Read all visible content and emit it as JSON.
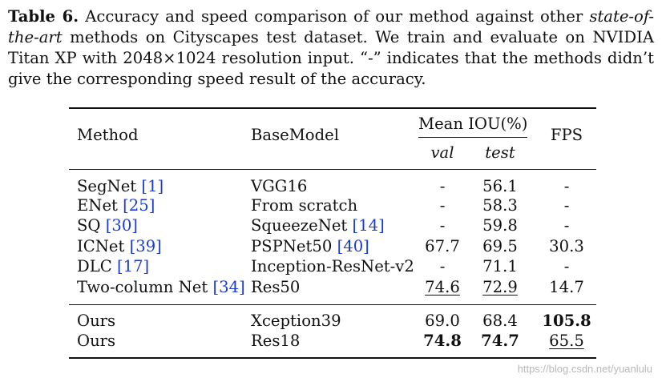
{
  "caption": {
    "label": "Table 6.",
    "part1": " Accuracy and speed comparison of our method against other ",
    "italic": "state-of-the-art",
    "part2": " methods on Cityscapes test dataset. We train and evaluate on NVIDIA Titan XP with 2048×1024 resolution input. “-” indicates that the methods didn’t give the corresponding speed result of the accuracy."
  },
  "headers": {
    "method": "Method",
    "basemodel": "BaseModel",
    "miou": "Mean IOU(%)",
    "val": "val",
    "test": "test",
    "fps": "FPS"
  },
  "rows": [
    {
      "method": "SegNet",
      "method_ref": "[1]",
      "base": "VGG16",
      "base_ref": "",
      "val": "-",
      "test": "56.1",
      "fps": "-"
    },
    {
      "method": "ENet",
      "method_ref": "[25]",
      "base": "From scratch",
      "base_ref": "",
      "val": "-",
      "test": "58.3",
      "fps": "-"
    },
    {
      "method": "SQ",
      "method_ref": "[30]",
      "base": "SqueezeNet",
      "base_ref": "[14]",
      "val": "-",
      "test": "59.8",
      "fps": "-"
    },
    {
      "method": "ICNet",
      "method_ref": "[39]",
      "base": "PSPNet50",
      "base_ref": "[40]",
      "val": "67.7",
      "test": "69.5",
      "fps": "30.3"
    },
    {
      "method": "DLC",
      "method_ref": "[17]",
      "base": "Inception-ResNet-v2",
      "base_ref": "",
      "val": "-",
      "test": "71.1",
      "fps": "-"
    },
    {
      "method": "Two-column Net",
      "method_ref": "[34]",
      "base": "Res50",
      "base_ref": "",
      "val": "74.6",
      "test": "72.9",
      "fps": "14.7"
    }
  ],
  "ours": [
    {
      "method": "Ours",
      "base": "Xception39",
      "val": "69.0",
      "test": "68.4",
      "fps": "105.8"
    },
    {
      "method": "Ours",
      "base": "Res18",
      "val": "74.8",
      "test": "74.7",
      "fps": "65.5"
    }
  ],
  "watermark": "https://blog.csdn.net/yuanlulu"
}
